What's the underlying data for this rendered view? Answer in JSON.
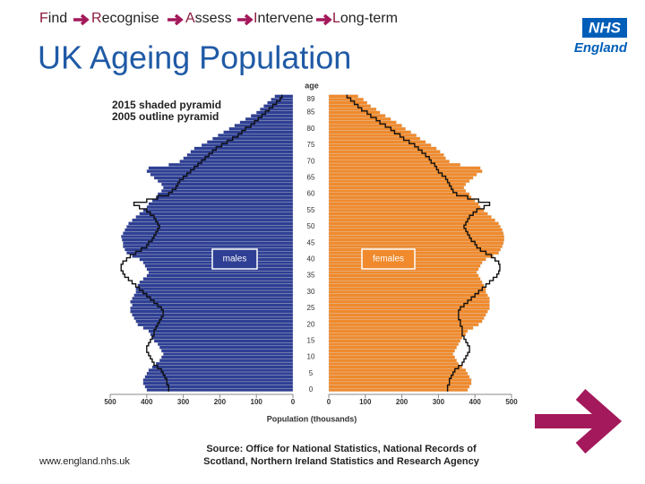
{
  "nav": [
    "Find",
    "Recognise",
    "Assess",
    "Intervene",
    "Long-term"
  ],
  "logo": {
    "mark": "NHS",
    "name": "England"
  },
  "footer": {
    "url": "www.england.nhs.uk",
    "source": [
      "Source: Office for National Statistics, National Records of",
      "Scotland, Northern Ireland Statistics and Research Agency"
    ]
  },
  "chart_data": {
    "type": "pyramid",
    "title": "UK Ageing Population",
    "age_label": "age",
    "x_label": "Population (thousands)",
    "legend": [
      "2015 shaded pyramid",
      "2005 outline pyramid"
    ],
    "categories": [
      "0",
      null,
      null,
      null,
      null,
      "5",
      null,
      null,
      null,
      null,
      "10",
      null,
      null,
      null,
      null,
      "15",
      null,
      null,
      null,
      null,
      "20",
      null,
      null,
      null,
      null,
      "25",
      null,
      null,
      null,
      null,
      "30",
      null,
      null,
      null,
      null,
      "35",
      null,
      null,
      null,
      null,
      "40",
      null,
      null,
      null,
      null,
      "45",
      null,
      null,
      null,
      null,
      "50",
      null,
      null,
      null,
      null,
      "55",
      null,
      null,
      null,
      null,
      "60",
      null,
      null,
      null,
      null,
      "65",
      null,
      null,
      null,
      null,
      "70",
      null,
      null,
      null,
      null,
      "75",
      null,
      null,
      null,
      null,
      "80",
      null,
      null,
      null,
      null,
      "85",
      null,
      null,
      null,
      "89",
      null
    ],
    "xlim": [
      0,
      500
    ],
    "xticks": [
      0,
      100,
      200,
      300,
      400,
      500
    ],
    "series": [
      {
        "name": "males",
        "color": "#2e3f94",
        "values": [
          400,
          405,
          410,
          410,
          405,
          400,
          395,
          385,
          375,
          365,
          360,
          355,
          360,
          365,
          370,
          380,
          385,
          390,
          395,
          410,
          425,
          430,
          435,
          440,
          445,
          445,
          440,
          445,
          440,
          435,
          430,
          430,
          425,
          420,
          410,
          400,
          395,
          400,
          405,
          410,
          420,
          440,
          455,
          460,
          465,
          465,
          468,
          470,
          465,
          460,
          455,
          450,
          440,
          430,
          420,
          410,
          400,
          395,
          385,
          375,
          370,
          360,
          355,
          360,
          370,
          380,
          390,
          400,
          395,
          340,
          310,
          300,
          290,
          280,
          270,
          250,
          235,
          220,
          205,
          190,
          175,
          160,
          145,
          130,
          115,
          100,
          90,
          80,
          70,
          60,
          50
        ],
        "outline": [
          340,
          340,
          345,
          345,
          350,
          355,
          360,
          370,
          380,
          385,
          390,
          395,
          400,
          400,
          395,
          390,
          385,
          380,
          380,
          375,
          370,
          365,
          360,
          355,
          355,
          360,
          370,
          380,
          390,
          400,
          410,
          420,
          430,
          440,
          450,
          460,
          465,
          470,
          470,
          465,
          455,
          445,
          430,
          415,
          400,
          395,
          385,
          380,
          375,
          370,
          365,
          370,
          375,
          380,
          390,
          400,
          420,
          435,
          400,
          370,
          340,
          330,
          320,
          315,
          310,
          300,
          290,
          280,
          270,
          260,
          250,
          240,
          230,
          220,
          210,
          195,
          180,
          165,
          150,
          140,
          130,
          115,
          105,
          95,
          85,
          75,
          65,
          55,
          45,
          35,
          30
        ]
      },
      {
        "name": "females",
        "color": "#f08a2c",
        "values": [
          380,
          385,
          390,
          390,
          385,
          380,
          375,
          365,
          355,
          350,
          345,
          340,
          345,
          350,
          355,
          360,
          365,
          375,
          380,
          395,
          410,
          420,
          425,
          430,
          435,
          440,
          440,
          440,
          440,
          435,
          430,
          430,
          425,
          420,
          415,
          410,
          405,
          410,
          415,
          420,
          430,
          450,
          465,
          470,
          475,
          478,
          480,
          480,
          478,
          475,
          470,
          465,
          455,
          445,
          435,
          425,
          415,
          410,
          400,
          390,
          385,
          375,
          370,
          375,
          385,
          395,
          405,
          420,
          415,
          360,
          330,
          320,
          315,
          305,
          295,
          280,
          265,
          250,
          240,
          225,
          210,
          200,
          185,
          170,
          155,
          140,
          130,
          115,
          105,
          95,
          80
        ],
        "outline": [
          325,
          325,
          330,
          330,
          335,
          340,
          345,
          355,
          365,
          370,
          375,
          380,
          385,
          385,
          380,
          375,
          370,
          365,
          365,
          365,
          360,
          360,
          355,
          355,
          355,
          360,
          370,
          380,
          390,
          400,
          410,
          420,
          430,
          440,
          450,
          460,
          465,
          468,
          468,
          465,
          455,
          445,
          430,
          415,
          405,
          400,
          390,
          385,
          380,
          375,
          370,
          375,
          380,
          385,
          395,
          405,
          425,
          440,
          410,
          380,
          350,
          340,
          335,
          330,
          325,
          320,
          310,
          300,
          295,
          290,
          280,
          275,
          265,
          255,
          245,
          235,
          220,
          205,
          195,
          180,
          170,
          155,
          140,
          130,
          115,
          105,
          90,
          80,
          70,
          60,
          50
        ]
      }
    ]
  }
}
